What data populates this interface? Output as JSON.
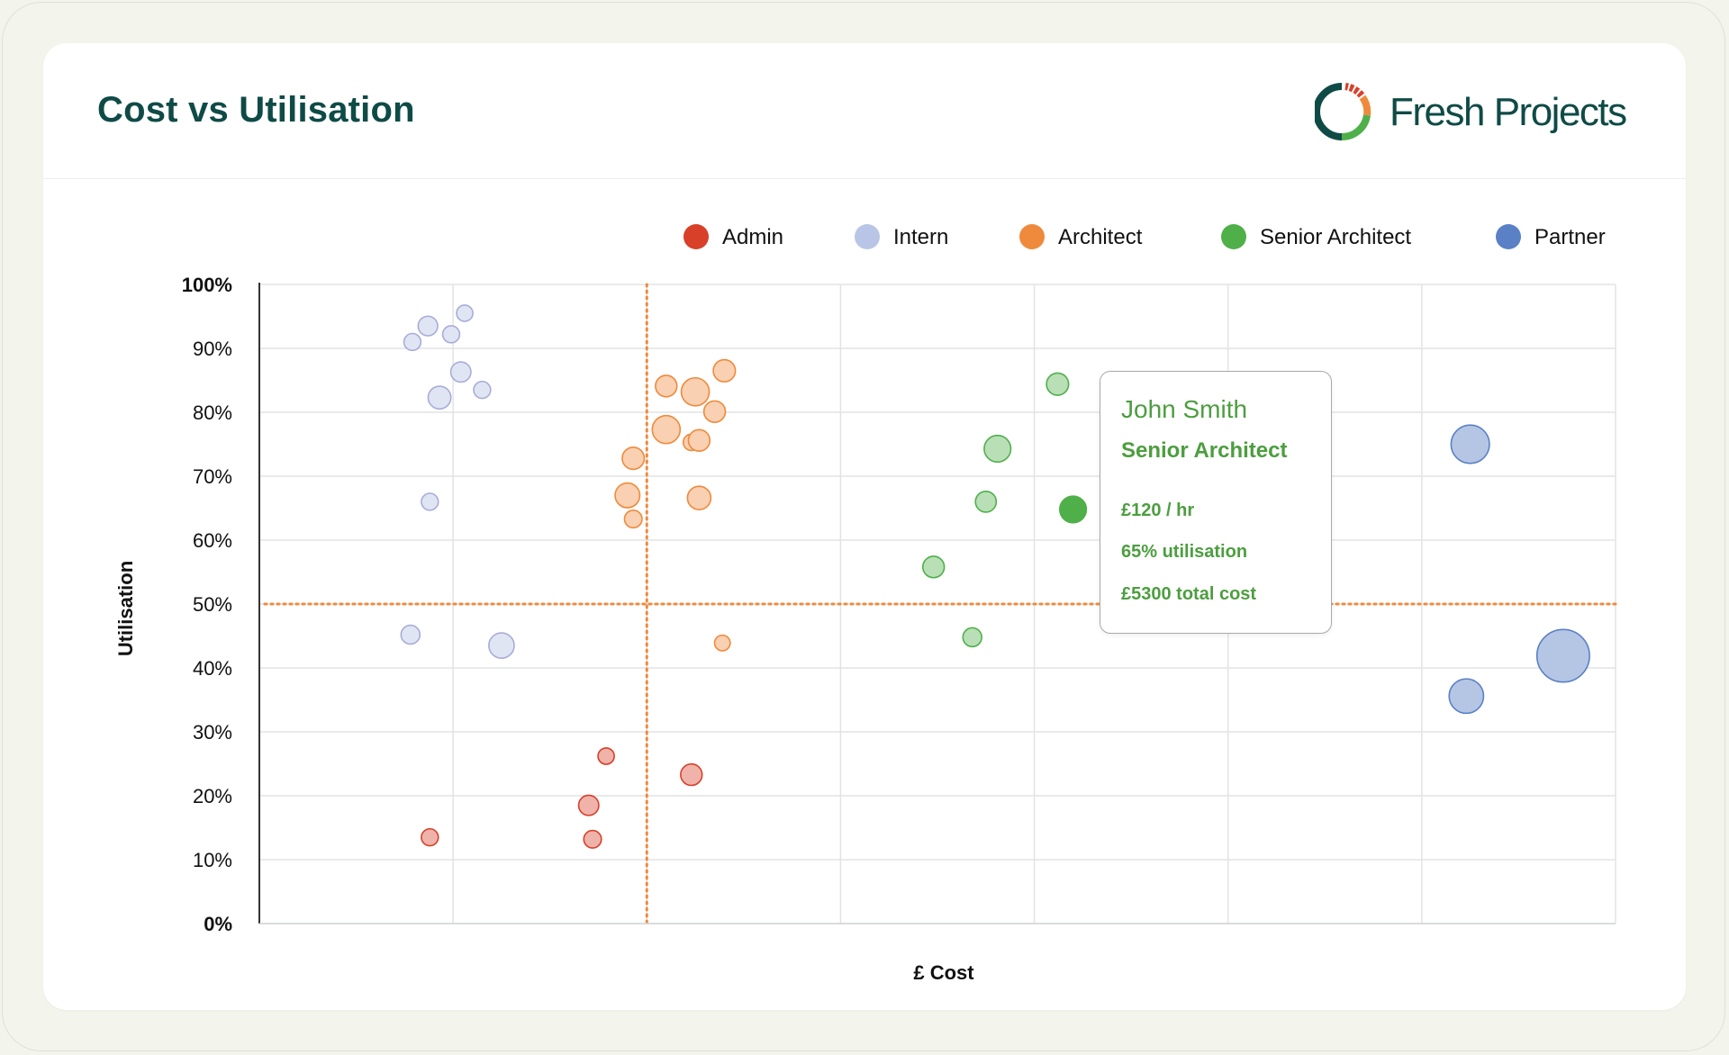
{
  "header": {
    "title": "Cost vs Utilisation"
  },
  "brand": {
    "name": "Fresh Projects",
    "colors": {
      "dark": "#0f4b46",
      "green": "#4fb04a",
      "orange": "#ef8a3c",
      "red": "#d8402a"
    }
  },
  "tooltip": {
    "name": "John Smith",
    "role": "Senior Architect",
    "rate": "£120 / hr",
    "utilisation": "65% utilisation",
    "total_cost": "£5300 total cost"
  },
  "chart_data": {
    "type": "scatter",
    "bubble": true,
    "title": "",
    "xlabel": "£ Cost",
    "ylabel": "Utilisation",
    "xlim": [
      0,
      7
    ],
    "ylim": [
      0,
      100
    ],
    "x_gridlines": [
      1,
      2,
      3,
      4,
      5,
      6,
      7
    ],
    "y_ticks": [
      0,
      10,
      20,
      30,
      40,
      50,
      60,
      70,
      80,
      90,
      100
    ],
    "y_tick_labels": [
      "0%",
      "10%",
      "20%",
      "30%",
      "40%",
      "50%",
      "60%",
      "70%",
      "80%",
      "90%",
      "100%"
    ],
    "x_tick_labels_shown": false,
    "reference_lines": [
      {
        "axis": "x",
        "value": 2,
        "color": "#ef8a3c",
        "style": "dotted"
      },
      {
        "axis": "y",
        "value": 50,
        "color": "#ef8a3c",
        "style": "dotted"
      }
    ],
    "legend_position": "top-right",
    "series": [
      {
        "name": "Admin",
        "color": "#d8402a",
        "points": [
          {
            "x": 0.88,
            "y": 13.5,
            "size": 1.5
          },
          {
            "x": 1.7,
            "y": 18.5,
            "size": 2.0
          },
          {
            "x": 1.72,
            "y": 13.2,
            "size": 1.6
          },
          {
            "x": 1.79,
            "y": 26.2,
            "size": 1.4
          },
          {
            "x": 2.23,
            "y": 23.3,
            "size": 2.2
          }
        ]
      },
      {
        "name": "Intern",
        "color": "#b9c5e6",
        "points": [
          {
            "x": 0.78,
            "y": 45.2,
            "size": 1.8
          },
          {
            "x": 1.25,
            "y": 43.5,
            "size": 2.8
          },
          {
            "x": 0.88,
            "y": 66.0,
            "size": 1.5
          },
          {
            "x": 0.93,
            "y": 82.3,
            "size": 2.4
          },
          {
            "x": 1.04,
            "y": 86.3,
            "size": 2.0
          },
          {
            "x": 1.15,
            "y": 83.5,
            "size": 1.5
          },
          {
            "x": 0.79,
            "y": 91.0,
            "size": 1.5
          },
          {
            "x": 0.87,
            "y": 93.5,
            "size": 1.9
          },
          {
            "x": 0.99,
            "y": 92.2,
            "size": 1.5
          },
          {
            "x": 1.06,
            "y": 95.5,
            "size": 1.4
          }
        ]
      },
      {
        "name": "Architect",
        "color": "#ef8a3c",
        "points": [
          {
            "x": 1.1,
            "y": 0,
            "size": 0,
            "hidden": true
          },
          {
            "x": 1.9,
            "y": 67.0,
            "size": 2.7
          },
          {
            "x": 1.93,
            "y": 63.3,
            "size": 1.6
          },
          {
            "x": 1.93,
            "y": 72.8,
            "size": 2.3
          },
          {
            "x": 2.1,
            "y": 77.3,
            "size": 3.2
          },
          {
            "x": 2.1,
            "y": 84.1,
            "size": 2.2
          },
          {
            "x": 2.23,
            "y": 75.3,
            "size": 1.4
          },
          {
            "x": 2.25,
            "y": 83.2,
            "size": 3.2
          },
          {
            "x": 2.27,
            "y": 75.6,
            "size": 2.2
          },
          {
            "x": 2.27,
            "y": 66.6,
            "size": 2.5
          },
          {
            "x": 2.35,
            "y": 80.1,
            "size": 2.2
          },
          {
            "x": 2.4,
            "y": 86.5,
            "size": 2.3
          },
          {
            "x": 2.39,
            "y": 43.9,
            "size": 1.3
          }
        ]
      },
      {
        "name": "Senior Architect",
        "color": "#4fb04a",
        "points": [
          {
            "x": 3.48,
            "y": 55.8,
            "size": 2.2
          },
          {
            "x": 3.68,
            "y": 44.8,
            "size": 1.8
          },
          {
            "x": 3.75,
            "y": 66.0,
            "size": 2.1
          },
          {
            "x": 3.81,
            "y": 74.3,
            "size": 3.0
          },
          {
            "x": 4.12,
            "y": 84.4,
            "size": 2.3
          },
          {
            "x": 4.2,
            "y": 64.8,
            "size": 3.0,
            "highlight": true
          }
        ]
      },
      {
        "name": "Partner",
        "color": "#5a80c6",
        "points": [
          {
            "x": 6.25,
            "y": 75.0,
            "size": 4.8
          },
          {
            "x": 6.23,
            "y": 35.6,
            "size": 4.2
          },
          {
            "x": 6.73,
            "y": 41.9,
            "size": 7.0
          }
        ]
      }
    ]
  }
}
